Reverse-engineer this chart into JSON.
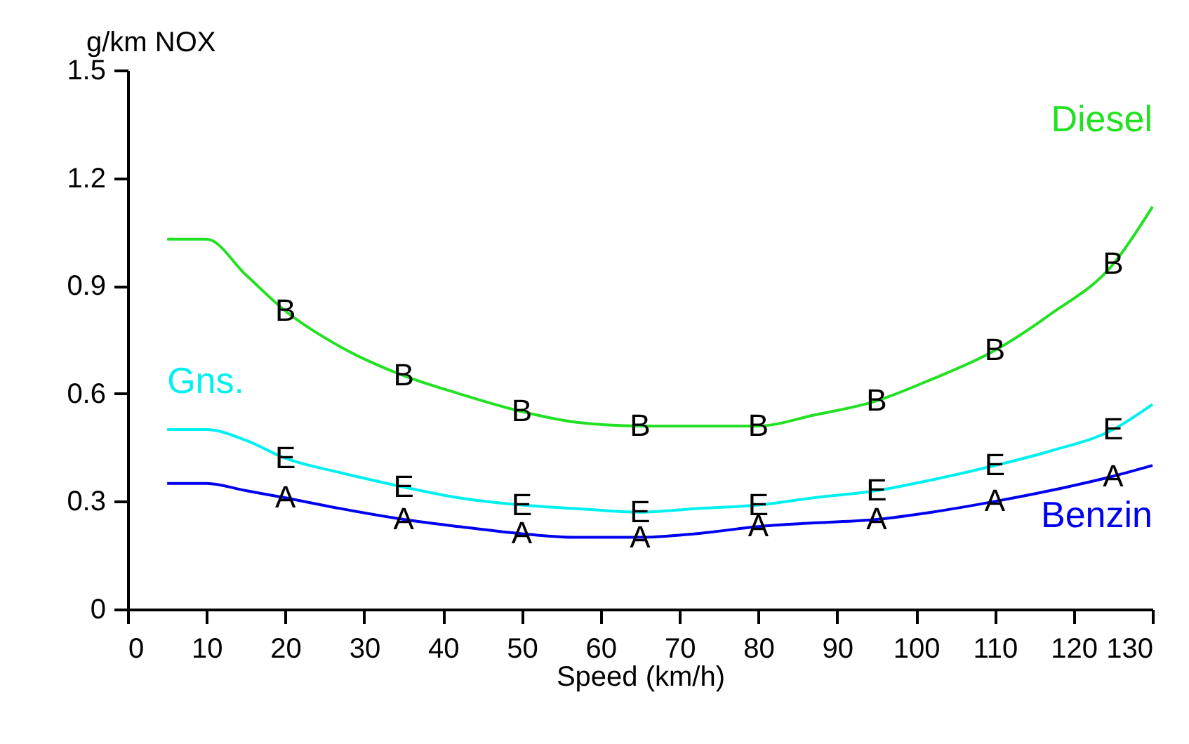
{
  "chart_data": {
    "type": "line",
    "xlabel": "Speed (km/h)",
    "ylabel": "g/km NOX",
    "x": [
      5,
      10,
      15,
      20,
      27,
      35,
      42,
      50,
      57,
      65,
      72,
      80,
      87,
      95,
      102,
      110,
      117,
      125,
      130
    ],
    "series": [
      {
        "name": "Diesel",
        "color": "#22e022",
        "values": [
          1.03,
          1.03,
          0.93,
          0.83,
          0.73,
          0.65,
          0.6,
          0.55,
          0.52,
          0.51,
          0.51,
          0.51,
          0.54,
          0.58,
          0.64,
          0.72,
          0.82,
          0.96,
          1.12
        ]
      },
      {
        "name": "Gns.",
        "color": "#00f0f0",
        "values": [
          0.5,
          0.5,
          0.47,
          0.42,
          0.38,
          0.34,
          0.31,
          0.29,
          0.28,
          0.27,
          0.28,
          0.29,
          0.31,
          0.33,
          0.36,
          0.4,
          0.44,
          0.5,
          0.57
        ]
      },
      {
        "name": "Benzin",
        "color": "#0000ee",
        "values": [
          0.35,
          0.35,
          0.33,
          0.31,
          0.28,
          0.25,
          0.23,
          0.21,
          0.2,
          0.2,
          0.21,
          0.23,
          0.24,
          0.25,
          0.27,
          0.3,
          0.33,
          0.37,
          0.4
        ]
      }
    ],
    "annotations": [
      {
        "text": "B",
        "x": 20,
        "y": 0.83
      },
      {
        "text": "B",
        "x": 35,
        "y": 0.65
      },
      {
        "text": "B",
        "x": 50,
        "y": 0.55
      },
      {
        "text": "B",
        "x": 65,
        "y": 0.51
      },
      {
        "text": "B",
        "x": 80,
        "y": 0.51
      },
      {
        "text": "B",
        "x": 95,
        "y": 0.58
      },
      {
        "text": "B",
        "x": 110,
        "y": 0.72
      },
      {
        "text": "B",
        "x": 125,
        "y": 0.96
      },
      {
        "text": "E",
        "x": 20,
        "y": 0.42
      },
      {
        "text": "E",
        "x": 35,
        "y": 0.34
      },
      {
        "text": "E",
        "x": 50,
        "y": 0.29
      },
      {
        "text": "E",
        "x": 65,
        "y": 0.27
      },
      {
        "text": "E",
        "x": 80,
        "y": 0.29
      },
      {
        "text": "E",
        "x": 95,
        "y": 0.33
      },
      {
        "text": "E",
        "x": 110,
        "y": 0.4
      },
      {
        "text": "E",
        "x": 125,
        "y": 0.5
      },
      {
        "text": "A",
        "x": 20,
        "y": 0.31
      },
      {
        "text": "A",
        "x": 35,
        "y": 0.25
      },
      {
        "text": "A",
        "x": 50,
        "y": 0.21
      },
      {
        "text": "A",
        "x": 65,
        "y": 0.2
      },
      {
        "text": "A",
        "x": 80,
        "y": 0.23
      },
      {
        "text": "A",
        "x": 95,
        "y": 0.25
      },
      {
        "text": "A",
        "x": 110,
        "y": 0.3
      },
      {
        "text": "A",
        "x": 125,
        "y": 0.37
      }
    ],
    "xlim": [
      0,
      130
    ],
    "xticks": [
      0,
      10,
      20,
      30,
      40,
      50,
      60,
      70,
      80,
      90,
      100,
      110,
      120,
      130
    ],
    "ylim": [
      0,
      1.5
    ],
    "yticks": [
      0,
      0.3,
      0.6,
      0.9,
      1.2,
      1.5
    ],
    "grid": false,
    "legend": false,
    "marker": "none",
    "line_style": "solid"
  }
}
